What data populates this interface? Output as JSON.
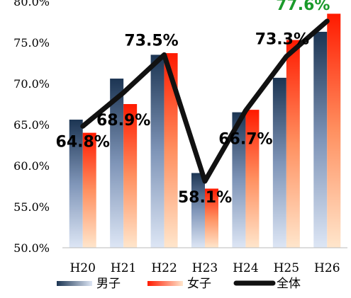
{
  "chart_data": {
    "type": "bar",
    "categories": [
      "H20",
      "H21",
      "H22",
      "H23",
      "H24",
      "H25",
      "H26"
    ],
    "series": [
      {
        "name": "男子",
        "kind": "bar",
        "values": [
          65.6,
          70.6,
          73.5,
          59.1,
          66.5,
          70.7,
          76.3
        ]
      },
      {
        "name": "女子",
        "kind": "bar",
        "values": [
          64.0,
          67.5,
          73.7,
          57.2,
          66.8,
          75.3,
          78.5
        ]
      },
      {
        "name": "全体",
        "kind": "line",
        "values": [
          64.8,
          68.9,
          73.5,
          58.1,
          66.7,
          73.3,
          77.6
        ]
      }
    ],
    "data_labels": [
      "64.8%",
      "68.9%",
      "73.5%",
      "58.1%",
      "66.7%",
      "73.3%",
      "77.6%"
    ],
    "yticks": [
      "50.0%",
      "55.0%",
      "60.0%",
      "65.0%",
      "70.0%",
      "75.0%",
      "80.0%"
    ],
    "ylim": [
      50,
      80
    ],
    "grid": false,
    "legend_position": "bottom",
    "colors": {
      "male_top": "#1c3553",
      "male_bottom": "#dde6f5",
      "female_top": "#ff1a00",
      "female_bottom": "#ffe6cc",
      "line": "#111111",
      "last_label": "#1a9a2a"
    }
  }
}
